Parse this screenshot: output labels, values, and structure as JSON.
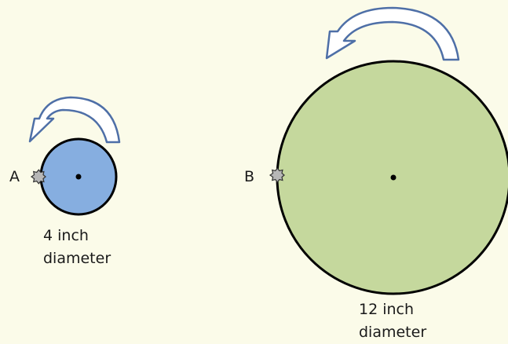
{
  "wheels": [
    {
      "id": "A",
      "point_label": "A",
      "caption_line1": "4 inch",
      "caption_line2": "diameter",
      "fill": "#86aee0"
    },
    {
      "id": "B",
      "point_label": "B",
      "caption_line1": "12 inch",
      "caption_line2": "diameter",
      "fill": "#c5d89d"
    }
  ],
  "arrow_color": "#4e6fa7",
  "marker_color": "#b7b7b7",
  "background": "#fbfbe9"
}
